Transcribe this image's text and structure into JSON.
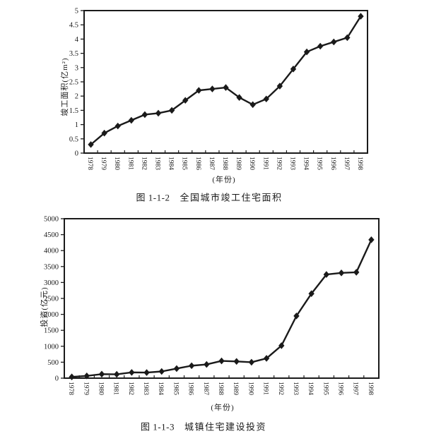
{
  "page": {
    "background": "#ffffff",
    "ink_color": "#1a1a1a"
  },
  "chart_data": [
    {
      "type": "line",
      "fig_label": "图 1-1-2",
      "title": "全国城市竣工住宅面积",
      "ylabel": "竣工面积(亿m²)",
      "xlabel": "(年份)",
      "categories": [
        "1978",
        "1979",
        "1980",
        "1981",
        "1982",
        "1983",
        "1984",
        "1985",
        "1986",
        "1987",
        "1988",
        "1989",
        "1990",
        "1991",
        "1992",
        "1993",
        "1994",
        "1995",
        "1996",
        "1997",
        "1998"
      ],
      "values": [
        0.3,
        0.7,
        0.95,
        1.15,
        1.35,
        1.4,
        1.5,
        1.85,
        2.2,
        2.25,
        2.3,
        1.95,
        1.7,
        1.9,
        2.35,
        2.95,
        3.55,
        3.75,
        3.9,
        4.05,
        4.8
      ],
      "ylim": [
        0,
        5
      ],
      "ytick_interval": 0.5,
      "ytick_labels": [
        "0",
        "0.5",
        "1",
        "1.5",
        "2",
        "2.5",
        "3",
        "3.5",
        "4",
        "4.5",
        "5"
      ],
      "marker": "diamond",
      "line_color": "#1a1a1a",
      "grid": false,
      "legend": "none"
    },
    {
      "type": "line",
      "fig_label": "图 1-1-3",
      "title": "城镇住宅建设投资",
      "ylabel": "投资(亿元)",
      "xlabel": "(年份)",
      "categories": [
        "1978",
        "1979",
        "1980",
        "1981",
        "1982",
        "1983",
        "1984",
        "1985",
        "1986",
        "1987",
        "1988",
        "1989",
        "1990",
        "1991",
        "1992",
        "1993",
        "1994",
        "1995",
        "1996",
        "1997",
        "1998"
      ],
      "values": [
        40,
        70,
        125,
        120,
        180,
        175,
        210,
        300,
        390,
        430,
        540,
        525,
        500,
        620,
        1020,
        1950,
        2650,
        3250,
        3300,
        3320,
        4340
      ],
      "ylim": [
        0,
        5000
      ],
      "ytick_interval": 500,
      "ytick_labels": [
        "0",
        "500",
        "1000",
        "1500",
        "2000",
        "2500",
        "3000",
        "3500",
        "4000",
        "4500",
        "5000"
      ],
      "marker": "diamond",
      "line_color": "#1a1a1a",
      "grid": false,
      "legend": "none"
    }
  ]
}
